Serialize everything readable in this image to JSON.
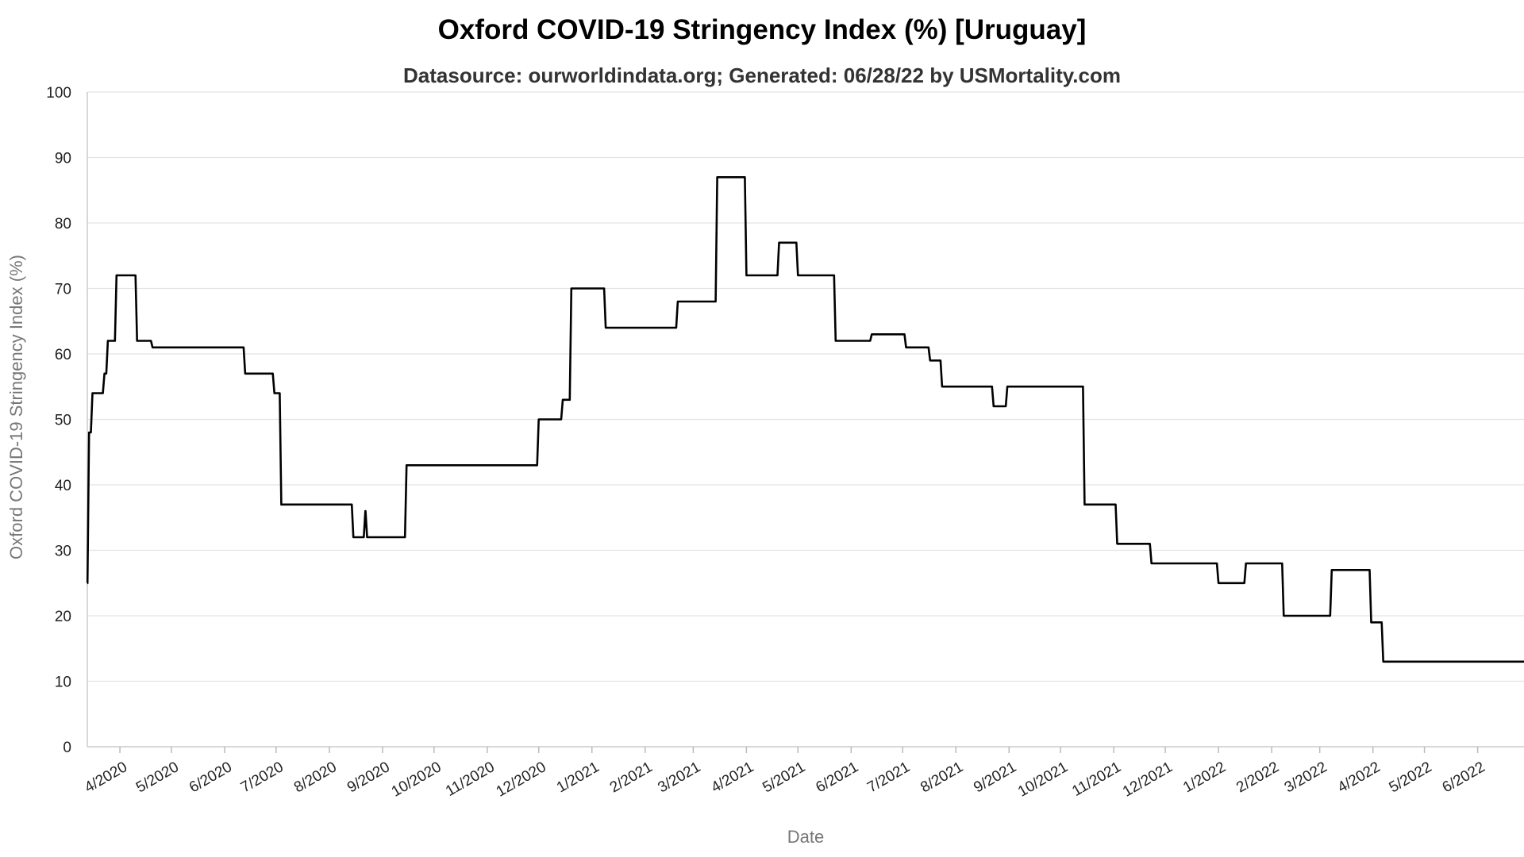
{
  "chart_data": {
    "type": "line",
    "title": "Oxford COVID-19 Stringency Index (%) [Uruguay]",
    "subtitle": "Datasource: ourworldindata.org; Generated: 06/28/22 by USMortality.com",
    "xlabel": "Date",
    "ylabel": "Oxford COVID-19 Stringency Index (%)",
    "ylim": [
      0,
      100
    ],
    "xlim": [
      "2020-03-13",
      "2022-06-28"
    ],
    "y_ticks": [
      0,
      10,
      20,
      30,
      40,
      50,
      60,
      70,
      80,
      90,
      100
    ],
    "x_ticks": [
      {
        "date": "2020-04-01",
        "label": "4/2020"
      },
      {
        "date": "2020-05-01",
        "label": "5/2020"
      },
      {
        "date": "2020-06-01",
        "label": "6/2020"
      },
      {
        "date": "2020-07-01",
        "label": "7/2020"
      },
      {
        "date": "2020-08-01",
        "label": "8/2020"
      },
      {
        "date": "2020-09-01",
        "label": "9/2020"
      },
      {
        "date": "2020-10-01",
        "label": "10/2020"
      },
      {
        "date": "2020-11-01",
        "label": "11/2020"
      },
      {
        "date": "2020-12-01",
        "label": "12/2020"
      },
      {
        "date": "2021-01-01",
        "label": "1/2021"
      },
      {
        "date": "2021-02-01",
        "label": "2/2021"
      },
      {
        "date": "2021-03-01",
        "label": "3/2021"
      },
      {
        "date": "2021-04-01",
        "label": "4/2021"
      },
      {
        "date": "2021-05-01",
        "label": "5/2021"
      },
      {
        "date": "2021-06-01",
        "label": "6/2021"
      },
      {
        "date": "2021-07-01",
        "label": "7/2021"
      },
      {
        "date": "2021-08-01",
        "label": "8/2021"
      },
      {
        "date": "2021-09-01",
        "label": "9/2021"
      },
      {
        "date": "2021-10-01",
        "label": "10/2021"
      },
      {
        "date": "2021-11-01",
        "label": "11/2021"
      },
      {
        "date": "2021-12-01",
        "label": "12/2021"
      },
      {
        "date": "2022-01-01",
        "label": "1/2022"
      },
      {
        "date": "2022-02-01",
        "label": "2/2022"
      },
      {
        "date": "2022-03-01",
        "label": "3/2022"
      },
      {
        "date": "2022-04-01",
        "label": "4/2022"
      },
      {
        "date": "2022-05-01",
        "label": "5/2022"
      },
      {
        "date": "2022-06-01",
        "label": "6/2022"
      }
    ],
    "grid": true,
    "legend": "none",
    "line_color": "#000000",
    "grid_color": "#e3e3e3",
    "series": [
      {
        "step": true,
        "points": [
          [
            "2020-03-13",
            25
          ],
          [
            "2020-03-14",
            48
          ],
          [
            "2020-03-16",
            54
          ],
          [
            "2020-03-23",
            57
          ],
          [
            "2020-03-25",
            62
          ],
          [
            "2020-03-30",
            72
          ],
          [
            "2020-04-11",
            62
          ],
          [
            "2020-04-20",
            61
          ],
          [
            "2020-06-13",
            57
          ],
          [
            "2020-06-30",
            54
          ],
          [
            "2020-07-04",
            37
          ],
          [
            "2020-08-15",
            32
          ],
          [
            "2020-08-22",
            36
          ],
          [
            "2020-08-23",
            32
          ],
          [
            "2020-09-15",
            43
          ],
          [
            "2020-12-01",
            50
          ],
          [
            "2020-12-15",
            53
          ],
          [
            "2020-12-20",
            70
          ],
          [
            "2021-01-09",
            64
          ],
          [
            "2021-02-20",
            68
          ],
          [
            "2021-03-15",
            87
          ],
          [
            "2021-04-01",
            72
          ],
          [
            "2021-04-20",
            77
          ],
          [
            "2021-05-01",
            72
          ],
          [
            "2021-05-23",
            62
          ],
          [
            "2021-06-13",
            63
          ],
          [
            "2021-07-03",
            61
          ],
          [
            "2021-07-17",
            59
          ],
          [
            "2021-07-24",
            55
          ],
          [
            "2021-08-23",
            52
          ],
          [
            "2021-08-31",
            55
          ],
          [
            "2021-10-15",
            37
          ],
          [
            "2021-11-03",
            31
          ],
          [
            "2021-11-23",
            28
          ],
          [
            "2022-01-01",
            25
          ],
          [
            "2022-01-17",
            28
          ],
          [
            "2022-02-08",
            20
          ],
          [
            "2022-03-08",
            27
          ],
          [
            "2022-03-31",
            19
          ],
          [
            "2022-04-07",
            13
          ],
          [
            "2022-06-28",
            13
          ]
        ]
      }
    ]
  }
}
